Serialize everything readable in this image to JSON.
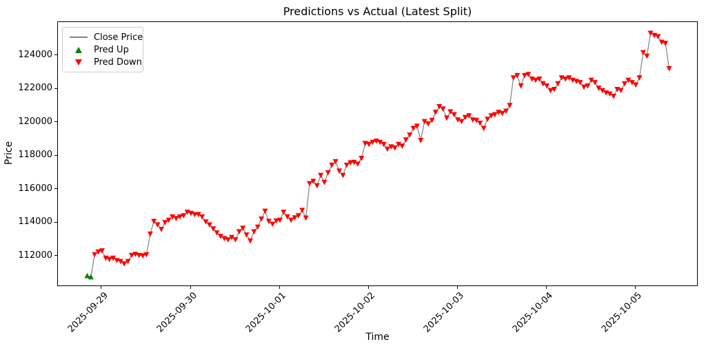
{
  "figure": {
    "title": "Predictions vs Actual (Latest Split)",
    "xlabel": "Time",
    "ylabel": "Price"
  },
  "legend": {
    "items": [
      {
        "label": "Close Price",
        "marker": "line",
        "color": "#808080"
      },
      {
        "label": "Pred Up",
        "marker": "triangle-up-icon",
        "color": "#008000"
      },
      {
        "label": "Pred Down",
        "marker": "triangle-down-icon",
        "color": "#ff0000"
      }
    ]
  },
  "chart_data": {
    "type": "line",
    "title": "Predictions vs Actual (Latest Split)",
    "xlabel": "Time",
    "ylabel": "Price",
    "series_name": "Close Price",
    "legend_position": "upper left",
    "grid": false,
    "n_points": 158,
    "x_unit": "hours",
    "x_start_estimate": "2025-09-28 20:00",
    "x_tick_labels": [
      "2025-09-29",
      "2025-09-30",
      "2025-10-01",
      "2025-10-02",
      "2025-10-03",
      "2025-10-04",
      "2025-10-05"
    ],
    "x_tick_indices": [
      4,
      28,
      52,
      76,
      100,
      124,
      148
    ],
    "xlim_index": [
      -7.9,
      164.9
    ],
    "y_ticks": [
      112000,
      114000,
      116000,
      118000,
      120000,
      122000,
      124000
    ],
    "ylim": [
      110170,
      126000
    ],
    "colors": {
      "line": "#808080",
      "pred_up": "#008000",
      "pred_down": "#ff0000"
    },
    "pred_up_indices": [
      0,
      1
    ],
    "prices": [
      110830,
      110760,
      112100,
      112260,
      112330,
      111890,
      111820,
      111890,
      111750,
      111690,
      111550,
      111690,
      112060,
      112120,
      112060,
      112030,
      112100,
      113330,
      114090,
      113880,
      113610,
      114020,
      114160,
      114360,
      114260,
      114360,
      114430,
      114640,
      114570,
      114500,
      114500,
      114360,
      114060,
      113880,
      113640,
      113400,
      113190,
      113060,
      112990,
      113130,
      112990,
      113470,
      113680,
      113280,
      112920,
      113470,
      113750,
      114230,
      114700,
      114090,
      113920,
      114120,
      114160,
      114640,
      114360,
      114160,
      114300,
      114430,
      114750,
      114290,
      116350,
      116490,
      116220,
      116840,
      116420,
      117000,
      117450,
      117660,
      117100,
      116840,
      117450,
      117590,
      117620,
      117520,
      117860,
      118750,
      118690,
      118820,
      118890,
      118820,
      118690,
      118410,
      118550,
      118480,
      118690,
      118590,
      118960,
      119250,
      119650,
      119780,
      118930,
      120060,
      119920,
      120130,
      120610,
      120950,
      120810,
      120270,
      120640,
      120470,
      120160,
      120060,
      120300,
      120400,
      120160,
      120130,
      119960,
      119650,
      120200,
      120400,
      120470,
      120610,
      120540,
      120680,
      121020,
      122670,
      122810,
      122190,
      122810,
      122870,
      122600,
      122530,
      122600,
      122320,
      122190,
      121910,
      121980,
      122320,
      122670,
      122600,
      122670,
      122530,
      122460,
      122390,
      122120,
      122190,
      122530,
      122390,
      122050,
      121910,
      121770,
      121710,
      121570,
      121980,
      121910,
      122320,
      122530,
      122390,
      122250,
      122670,
      124180,
      123970,
      125340,
      125210,
      125140,
      124800,
      124730,
      123220
    ]
  }
}
